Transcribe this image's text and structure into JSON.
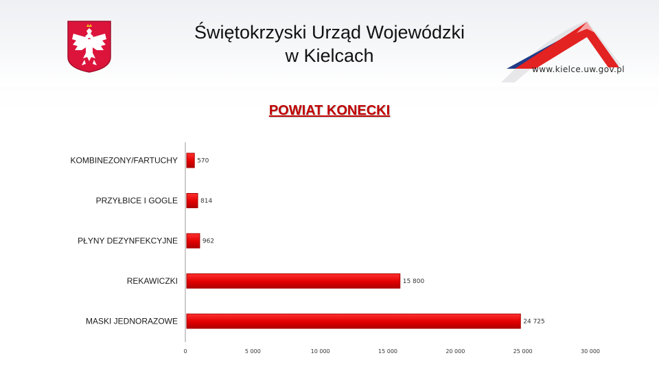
{
  "header": {
    "office_line1": "Świętokrzyski Urząd Wojewódzki",
    "office_line2": "w Kielcach",
    "website": "www.kielce.uw.gov.pl",
    "emblem_icon": "polish-eagle-emblem-icon",
    "brand_icon": "mountain-swoosh-icon"
  },
  "colors": {
    "bar": "#e00000",
    "bar_dark": "#a80000",
    "title": "#c00000",
    "emblem_red": "#dc143c"
  },
  "chart_data": {
    "type": "bar",
    "orientation": "horizontal",
    "title": "POWIAT KONECKI",
    "categories": [
      "KOMBINEZONY/FARTUCHY",
      "PRZYŁBICE I GOGLE",
      "PŁYNY DEZYNFEKCYJNE",
      "REKAWICZKI",
      "MASKI JEDNORAZOWE"
    ],
    "values": [
      570,
      814,
      962,
      15800,
      24725
    ],
    "value_labels": [
      "570",
      "814",
      "962",
      "15 800",
      "24 725"
    ],
    "xlim": [
      0,
      30000
    ],
    "ticks": [
      0,
      5000,
      10000,
      15000,
      20000,
      25000,
      30000
    ],
    "tick_labels": [
      "0",
      "5 000",
      "10 000",
      "15 000",
      "20 000",
      "25 000",
      "30 000"
    ],
    "grid": false,
    "legend": "none"
  }
}
